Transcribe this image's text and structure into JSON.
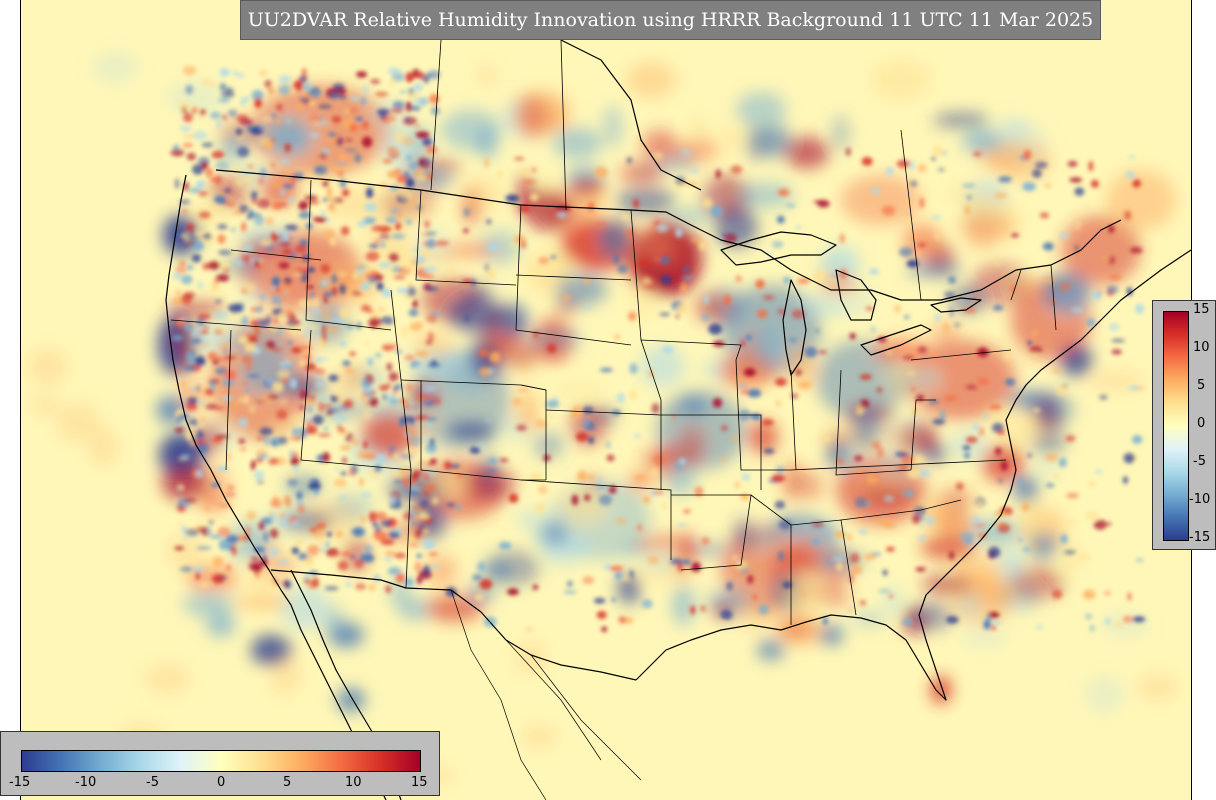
{
  "title": "UU2DVAR Relative Humidity Innovation using HRRR Background 11 UTC 11 Mar 2025",
  "colorbar": {
    "min": -15,
    "max": 15,
    "right_ticks": [
      "15",
      "10",
      "5",
      "0",
      "-5",
      "-10",
      "-15"
    ],
    "bottom_ticks": [
      "-15",
      "-10",
      "-5",
      "0",
      "5",
      "10",
      "15"
    ],
    "colors": [
      "#2b3d8f",
      "#4575b4",
      "#74add1",
      "#abd9e9",
      "#e0f3f8",
      "#ffffbf",
      "#fee090",
      "#fdae61",
      "#f46d43",
      "#d73027",
      "#a50026"
    ]
  },
  "map": {
    "background_color": "#fff7b8",
    "colormap": "RdYlBu_r"
  }
}
